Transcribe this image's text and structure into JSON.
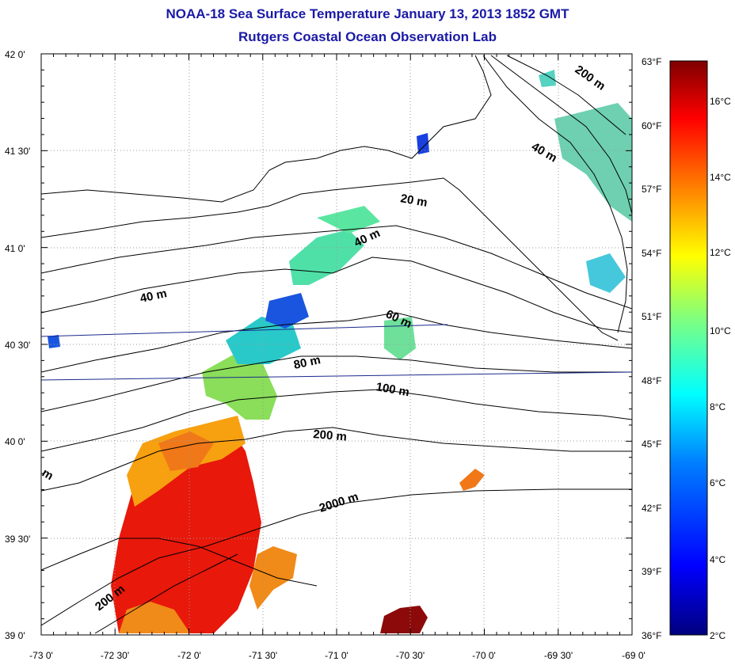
{
  "header": {
    "title": "NOAA-18 Sea Surface Temperature January 13, 2013 1852 GMT",
    "subtitle": "Rutgers Coastal Ocean Observation Lab"
  },
  "axes": {
    "lon_labels": [
      "-73 0'",
      "-72 30'",
      "-72 0'",
      "-71 30'",
      "-71 0'",
      "-70 30'",
      "-70 0'",
      "-69 30'",
      "-69 0'"
    ],
    "lat_labels": [
      "42 0'",
      "41 30'",
      "41 0'",
      "40 30'",
      "40 0'",
      "39 30'",
      "39 0'"
    ],
    "lon_range": [
      -73,
      -69
    ],
    "lat_range": [
      39,
      42
    ],
    "grid": "dotted"
  },
  "depth_labels": [
    "200 m",
    "40 m",
    "20 m",
    "40 m",
    "40 m",
    "60 m",
    "80 m",
    "100 m",
    "200 m",
    "2000 m",
    "200 m",
    "m"
  ],
  "colorbar": {
    "fahrenheit_labels": [
      "63°F",
      "60°F",
      "57°F",
      "54°F",
      "51°F",
      "48°F",
      "45°F",
      "42°F",
      "39°F",
      "36°F"
    ],
    "celsius_labels": [
      "16°C",
      "14°C",
      "12°C",
      "10°C",
      "8°C",
      "6°C",
      "4°C",
      "2°C"
    ],
    "range_f": [
      36,
      63
    ],
    "colors": [
      "#00007f",
      "#0000ff",
      "#007fff",
      "#00ffff",
      "#7fff7f",
      "#ffff00",
      "#ff7f00",
      "#ff0000",
      "#7f0000"
    ]
  },
  "colors": {
    "title": "#1a1aa6",
    "contour": "#000000",
    "transect": "#1a2a8c"
  }
}
